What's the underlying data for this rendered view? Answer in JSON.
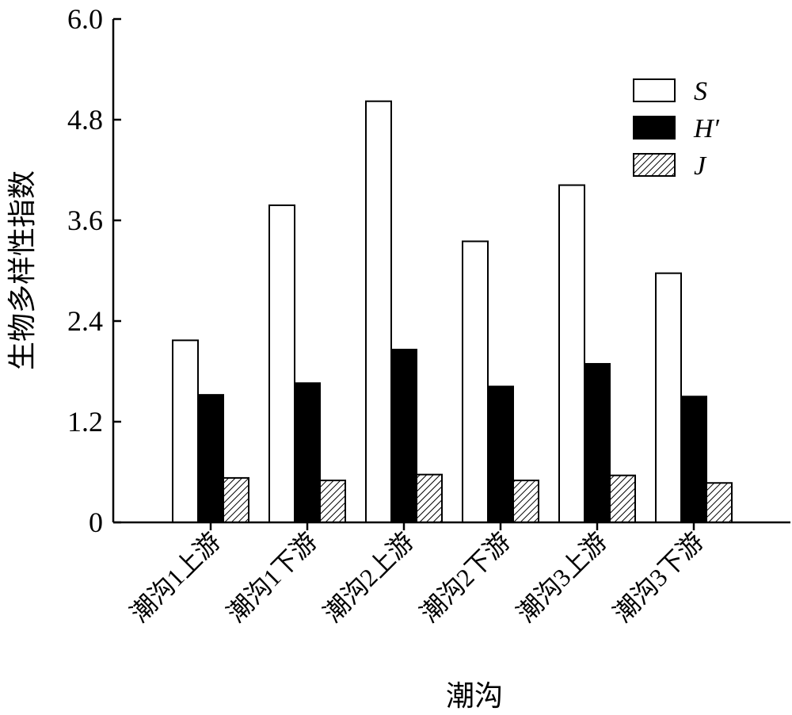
{
  "chart_data": {
    "type": "bar",
    "xlabel": "潮沟",
    "ylabel": "生物多样性指数",
    "ylim": [
      0,
      6.0
    ],
    "yticks": [
      "0",
      "1.2",
      "2.4",
      "3.6",
      "4.8",
      "6.0"
    ],
    "categories": [
      "潮沟1上游",
      "潮沟1下游",
      "潮沟2上游",
      "潮沟2下游",
      "潮沟3上游",
      "潮沟3下游"
    ],
    "series": [
      {
        "name": "S",
        "pattern": "white",
        "values": [
          2.17,
          3.78,
          5.02,
          3.35,
          4.02,
          2.97
        ]
      },
      {
        "name": "H′",
        "pattern": "black",
        "values": [
          1.52,
          1.66,
          2.06,
          1.62,
          1.89,
          1.5
        ]
      },
      {
        "name": "J",
        "pattern": "hatch",
        "values": [
          0.53,
          0.5,
          0.57,
          0.5,
          0.56,
          0.47
        ]
      }
    ],
    "legend_position": "top-right",
    "grid": false
  }
}
